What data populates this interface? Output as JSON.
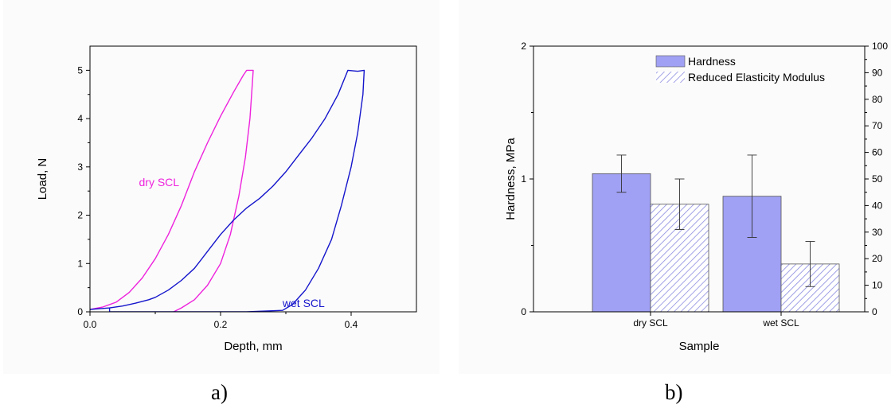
{
  "chart_data": [
    {
      "type": "line",
      "panel_label": "a)",
      "xlabel": "Depth, mm",
      "ylabel": "Load, N",
      "xlim": [
        0,
        0.5
      ],
      "ylim": [
        0,
        5.5
      ],
      "xticks": [
        0.0,
        0.2,
        0.4
      ],
      "xtick_labels": [
        "0.0",
        "0.2",
        "0.4"
      ],
      "yticks": [
        0,
        1,
        2,
        3,
        4,
        5
      ],
      "ytick_labels": [
        "0",
        "1",
        "2",
        "3",
        "4",
        "5"
      ],
      "grid": false,
      "annotations": [
        {
          "text": "dry SCL",
          "x": 0.075,
          "y": 2.6,
          "color": "#ee22dd"
        },
        {
          "text": "wet SCL",
          "x": 0.295,
          "y": 0.1,
          "color": "#1515cc"
        }
      ],
      "series": [
        {
          "color": "#ee22dd",
          "points": [
            [
              0.0,
              0.05
            ],
            [
              0.02,
              0.1
            ],
            [
              0.04,
              0.2
            ],
            [
              0.06,
              0.4
            ],
            [
              0.08,
              0.7
            ],
            [
              0.1,
              1.1
            ],
            [
              0.12,
              1.6
            ],
            [
              0.14,
              2.2
            ],
            [
              0.16,
              2.9
            ],
            [
              0.18,
              3.5
            ],
            [
              0.2,
              4.05
            ],
            [
              0.22,
              4.55
            ],
            [
              0.235,
              4.9
            ],
            [
              0.24,
              5.0
            ],
            [
              0.25,
              5.0
            ],
            [
              0.248,
              4.6
            ],
            [
              0.245,
              4.0
            ],
            [
              0.238,
              3.2
            ],
            [
              0.228,
              2.4
            ],
            [
              0.215,
              1.6
            ],
            [
              0.2,
              1.0
            ],
            [
              0.18,
              0.55
            ],
            [
              0.16,
              0.25
            ],
            [
              0.14,
              0.08
            ],
            [
              0.128,
              0.0
            ]
          ]
        },
        {
          "color": "#1515cc",
          "points": [
            [
              0.0,
              0.05
            ],
            [
              0.03,
              0.08
            ],
            [
              0.05,
              0.12
            ],
            [
              0.07,
              0.18
            ],
            [
              0.09,
              0.25
            ],
            [
              0.1,
              0.3
            ],
            [
              0.12,
              0.45
            ],
            [
              0.14,
              0.65
            ],
            [
              0.16,
              0.9
            ],
            [
              0.18,
              1.25
            ],
            [
              0.2,
              1.6
            ],
            [
              0.22,
              1.9
            ],
            [
              0.24,
              2.15
            ],
            [
              0.26,
              2.35
            ],
            [
              0.28,
              2.6
            ],
            [
              0.3,
              2.9
            ],
            [
              0.32,
              3.25
            ],
            [
              0.34,
              3.6
            ],
            [
              0.36,
              4.0
            ],
            [
              0.38,
              4.5
            ],
            [
              0.395,
              5.0
            ],
            [
              0.41,
              4.98
            ],
            [
              0.42,
              5.0
            ],
            [
              0.418,
              4.5
            ],
            [
              0.41,
              3.7
            ],
            [
              0.4,
              3.0
            ],
            [
              0.385,
              2.2
            ],
            [
              0.37,
              1.5
            ],
            [
              0.35,
              0.9
            ],
            [
              0.33,
              0.45
            ],
            [
              0.31,
              0.15
            ],
            [
              0.295,
              0.03
            ],
            [
              0.24,
              0.0
            ],
            [
              0.03,
              0.0
            ],
            [
              0.03,
              0.08
            ]
          ]
        }
      ]
    },
    {
      "type": "bar",
      "panel_label": "b)",
      "xlabel": "Sample",
      "ylabel": "Hardness, MPa",
      "categories": [
        "dry SCL",
        "wet SCL"
      ],
      "ylim": [
        0,
        2
      ],
      "yticks": [
        0,
        1,
        2
      ],
      "ytick_labels": [
        "0",
        "1",
        "2"
      ],
      "y2lim": [
        0,
        100
      ],
      "y2ticks": [
        0,
        10,
        20,
        30,
        40,
        50,
        60,
        70,
        80,
        90,
        100
      ],
      "y2tick_labels": [
        "0",
        "10",
        "20",
        "30",
        "40",
        "50",
        "60",
        "70",
        "80",
        "90",
        "100"
      ],
      "grid": false,
      "legend_position": "top-right",
      "series": [
        {
          "name": "Hardness",
          "axis": "left",
          "fill": "#a0a0f4",
          "pattern": "solid",
          "values": [
            1.04,
            0.87
          ],
          "errors": [
            0.14,
            0.31
          ]
        },
        {
          "name": "Reduced Elasticity Modulus",
          "axis": "right",
          "fill": "#8a8ae0",
          "pattern": "hatched",
          "values": [
            40.5,
            18.0
          ],
          "errors": [
            9.5,
            8.5
          ]
        }
      ]
    }
  ]
}
